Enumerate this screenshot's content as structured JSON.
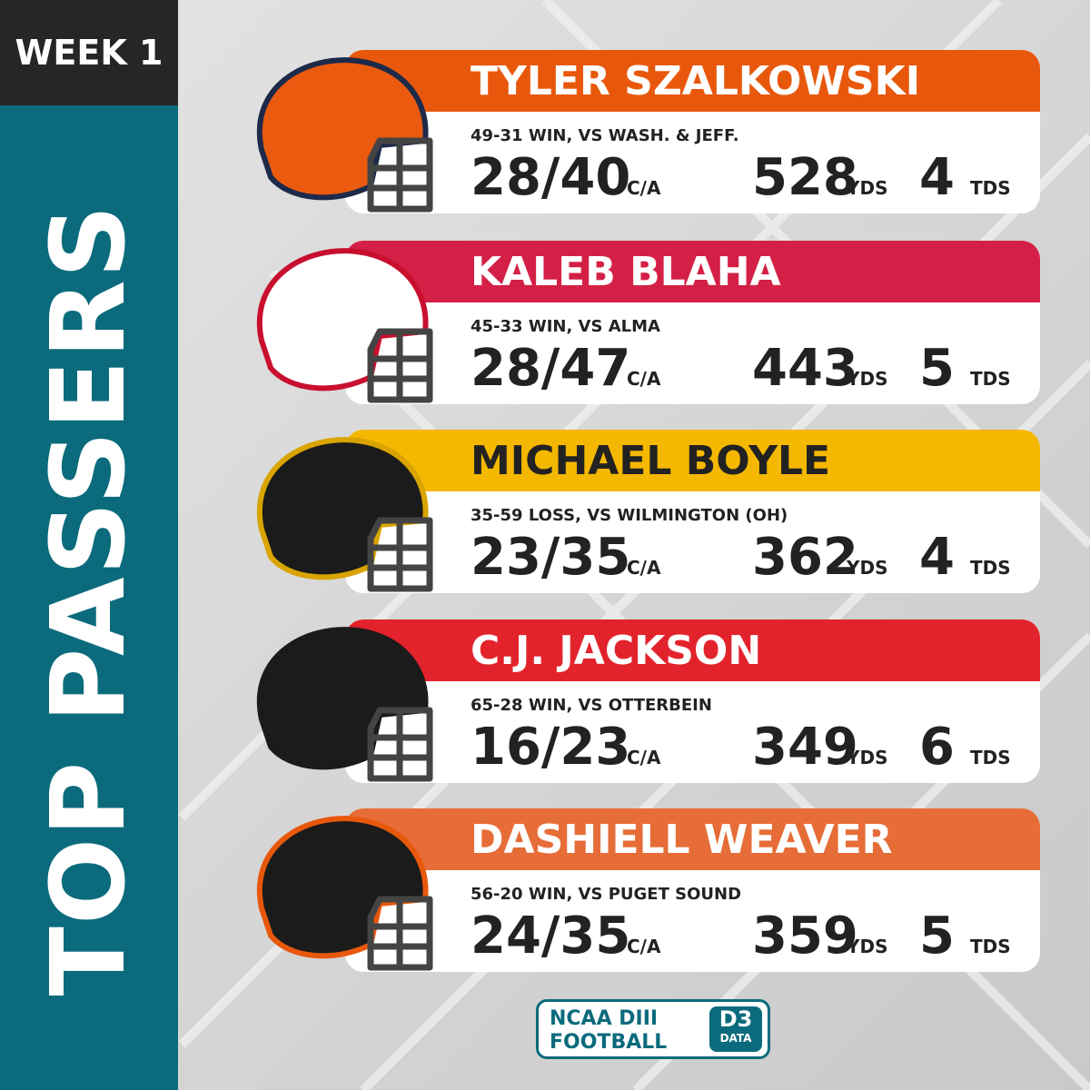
{
  "header": {
    "week": "WEEK 1",
    "title": "TOP PASSERS"
  },
  "players": [
    {
      "name": "TYLER SZALKOWSKI",
      "game": "49-31 WIN, VS WASH. & JEFF.",
      "ca": "28/40",
      "ca_unit": "C/A",
      "yds": 528,
      "yds_unit": "YDS",
      "tds": 4,
      "tds_unit": "TDS"
    },
    {
      "name": "KALEB BLAHA",
      "game": "45-33 WIN, VS ALMA",
      "ca": "28/47",
      "ca_unit": "C/A",
      "yds": 443,
      "yds_unit": "YDS",
      "tds": 5,
      "tds_unit": "TDS"
    },
    {
      "name": "MICHAEL BOYLE",
      "game": "35-59 LOSS, VS WILMINGTON (OH)",
      "ca": "23/35",
      "ca_unit": "C/A",
      "yds": 362,
      "yds_unit": "YDS",
      "tds": 4,
      "tds_unit": "TDS"
    },
    {
      "name": "C.J. JACKSON",
      "game": "65-28 WIN, VS OTTERBEIN",
      "ca": "16/23",
      "ca_unit": "C/A",
      "yds": 349,
      "yds_unit": "YDS",
      "tds": 6,
      "tds_unit": "TDS"
    },
    {
      "name": "DASHIELL WEAVER",
      "game": "56-20 WIN, VS PUGET SOUND",
      "ca": "24/35",
      "ca_unit": "C/A",
      "yds": 359,
      "yds_unit": "YDS",
      "tds": 5,
      "tds_unit": "TDS"
    }
  ],
  "footer": {
    "line1": "NCAA DIII",
    "line2": "FOOTBALL",
    "badge": "D3",
    "badge_sub": "DATA"
  }
}
